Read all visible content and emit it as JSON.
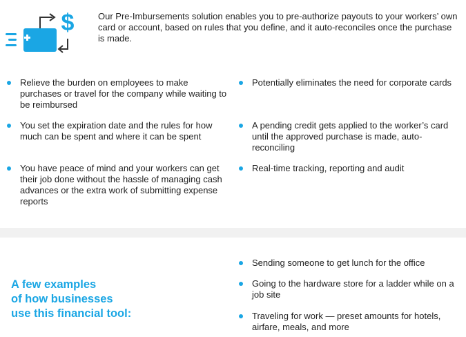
{
  "intro": {
    "icon": "card-payout-dollar-icon",
    "accent": "#1aa6e4",
    "text": "Our Pre-Imbursements solution enables you to pre-authorize payouts to your workers’ own card or account, based on rules that you define, and it auto-reconciles once the purchase is made."
  },
  "benefits": {
    "left": [
      "Relieve the burden on employees to make purchases or travel for the company while waiting to be reimbursed",
      "You set the expiration date and the rules for how much can be spent and where it can be spent",
      "You have peace of mind and your workers can get their job done without the hassle of managing cash advances or the extra work of submitting expense reports"
    ],
    "right": [
      "Potentially eliminates the need for corporate cards",
      "A pending credit gets applied to the worker’s card until the approved purchase is made, auto-reconciling",
      "Real-time tracking, reporting and audit"
    ]
  },
  "examples": {
    "heading_lines": [
      "A few examples",
      "of how businesses",
      "use this financial tool:"
    ],
    "items": [
      "Sending someone to get lunch for the office",
      "Going to the hardware store for a ladder while on a job site",
      "Traveling for work — preset amounts for hotels, airfare, meals, and more"
    ]
  }
}
